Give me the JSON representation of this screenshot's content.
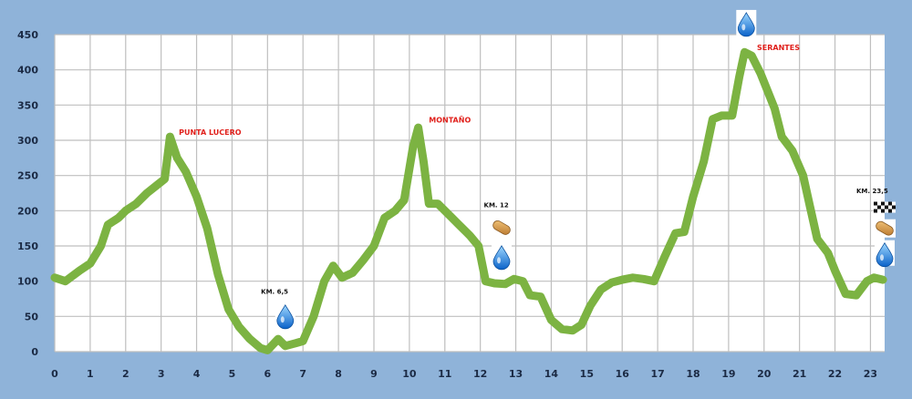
{
  "chart_data": {
    "type": "line",
    "title": "",
    "xlabel": "",
    "ylabel": "",
    "xlim": [
      0,
      23.4
    ],
    "ylim": [
      0,
      450
    ],
    "xticks": [
      0,
      1,
      2,
      3,
      4,
      5,
      6,
      7,
      8,
      9,
      10,
      11,
      12,
      13,
      14,
      15,
      16,
      17,
      18,
      19,
      20,
      21,
      22,
      23
    ],
    "yticks": [
      0,
      50,
      100,
      150,
      200,
      250,
      300,
      350,
      400,
      450
    ],
    "grid": true,
    "series": [
      {
        "color": "#7cb342",
        "points": [
          [
            0,
            105
          ],
          [
            0.3,
            100
          ],
          [
            0.7,
            115
          ],
          [
            1.0,
            125
          ],
          [
            1.3,
            150
          ],
          [
            1.5,
            180
          ],
          [
            1.8,
            190
          ],
          [
            2.0,
            200
          ],
          [
            2.3,
            210
          ],
          [
            2.6,
            225
          ],
          [
            2.9,
            237
          ],
          [
            3.1,
            245
          ],
          [
            3.25,
            305
          ],
          [
            3.45,
            275
          ],
          [
            3.7,
            255
          ],
          [
            4.0,
            220
          ],
          [
            4.3,
            175
          ],
          [
            4.6,
            110
          ],
          [
            4.9,
            60
          ],
          [
            5.2,
            35
          ],
          [
            5.5,
            18
          ],
          [
            5.8,
            5
          ],
          [
            6.0,
            2
          ],
          [
            6.3,
            18
          ],
          [
            6.5,
            8
          ],
          [
            6.8,
            12
          ],
          [
            7.0,
            15
          ],
          [
            7.3,
            50
          ],
          [
            7.6,
            100
          ],
          [
            7.85,
            122
          ],
          [
            8.1,
            105
          ],
          [
            8.4,
            112
          ],
          [
            8.7,
            130
          ],
          [
            9.0,
            150
          ],
          [
            9.3,
            190
          ],
          [
            9.6,
            200
          ],
          [
            9.85,
            215
          ],
          [
            10.1,
            290
          ],
          [
            10.25,
            318
          ],
          [
            10.4,
            270
          ],
          [
            10.55,
            210
          ],
          [
            10.8,
            210
          ],
          [
            11.1,
            195
          ],
          [
            11.4,
            180
          ],
          [
            11.7,
            165
          ],
          [
            11.95,
            150
          ],
          [
            12.15,
            100
          ],
          [
            12.4,
            97
          ],
          [
            12.7,
            96
          ],
          [
            12.95,
            103
          ],
          [
            13.2,
            100
          ],
          [
            13.4,
            80
          ],
          [
            13.7,
            78
          ],
          [
            14.0,
            45
          ],
          [
            14.3,
            32
          ],
          [
            14.6,
            30
          ],
          [
            14.85,
            38
          ],
          [
            15.1,
            65
          ],
          [
            15.4,
            88
          ],
          [
            15.7,
            98
          ],
          [
            16.0,
            102
          ],
          [
            16.3,
            105
          ],
          [
            16.6,
            103
          ],
          [
            16.9,
            100
          ],
          [
            17.2,
            135
          ],
          [
            17.5,
            168
          ],
          [
            17.75,
            170
          ],
          [
            18.0,
            220
          ],
          [
            18.3,
            270
          ],
          [
            18.55,
            330
          ],
          [
            18.8,
            335
          ],
          [
            19.1,
            335
          ],
          [
            19.3,
            390
          ],
          [
            19.45,
            425
          ],
          [
            19.65,
            420
          ],
          [
            19.9,
            395
          ],
          [
            20.1,
            370
          ],
          [
            20.3,
            345
          ],
          [
            20.5,
            305
          ],
          [
            20.8,
            285
          ],
          [
            21.1,
            250
          ],
          [
            21.3,
            205
          ],
          [
            21.5,
            160
          ],
          [
            21.8,
            140
          ],
          [
            22.0,
            115
          ],
          [
            22.3,
            82
          ],
          [
            22.6,
            80
          ],
          [
            22.9,
            100
          ],
          [
            23.1,
            105
          ],
          [
            23.35,
            102
          ]
        ]
      }
    ],
    "annotations": [
      {
        "text": "PUNTA LUCERO",
        "x": 3.5,
        "y": 308,
        "style": "peak"
      },
      {
        "text": "MONTAÑO",
        "x": 10.55,
        "y": 325,
        "style": "peak"
      },
      {
        "text": "SERANTES",
        "x": 19.8,
        "y": 428,
        "style": "peak"
      },
      {
        "text": "KM. 6,5",
        "x": 6.2,
        "y": 82,
        "style": "note"
      },
      {
        "text": "KM. 12",
        "x": 12.45,
        "y": 205,
        "style": "note"
      },
      {
        "text": "KM. 23,5",
        "x": 23.05,
        "y": 225,
        "style": "note"
      }
    ],
    "markers": [
      {
        "icon": "water-drop-icon",
        "x": 6.5,
        "y": 52
      },
      {
        "icon": "food-icon",
        "x": 12.6,
        "y": 176
      },
      {
        "icon": "water-drop-icon",
        "x": 12.6,
        "y": 136
      },
      {
        "icon": "water-drop-icon",
        "x": 19.5,
        "y": 467
      },
      {
        "icon": "finish-flag-icon",
        "x": 23.4,
        "y": 205
      },
      {
        "icon": "food-icon",
        "x": 23.4,
        "y": 175
      },
      {
        "icon": "water-drop-icon",
        "x": 23.4,
        "y": 140
      }
    ]
  }
}
